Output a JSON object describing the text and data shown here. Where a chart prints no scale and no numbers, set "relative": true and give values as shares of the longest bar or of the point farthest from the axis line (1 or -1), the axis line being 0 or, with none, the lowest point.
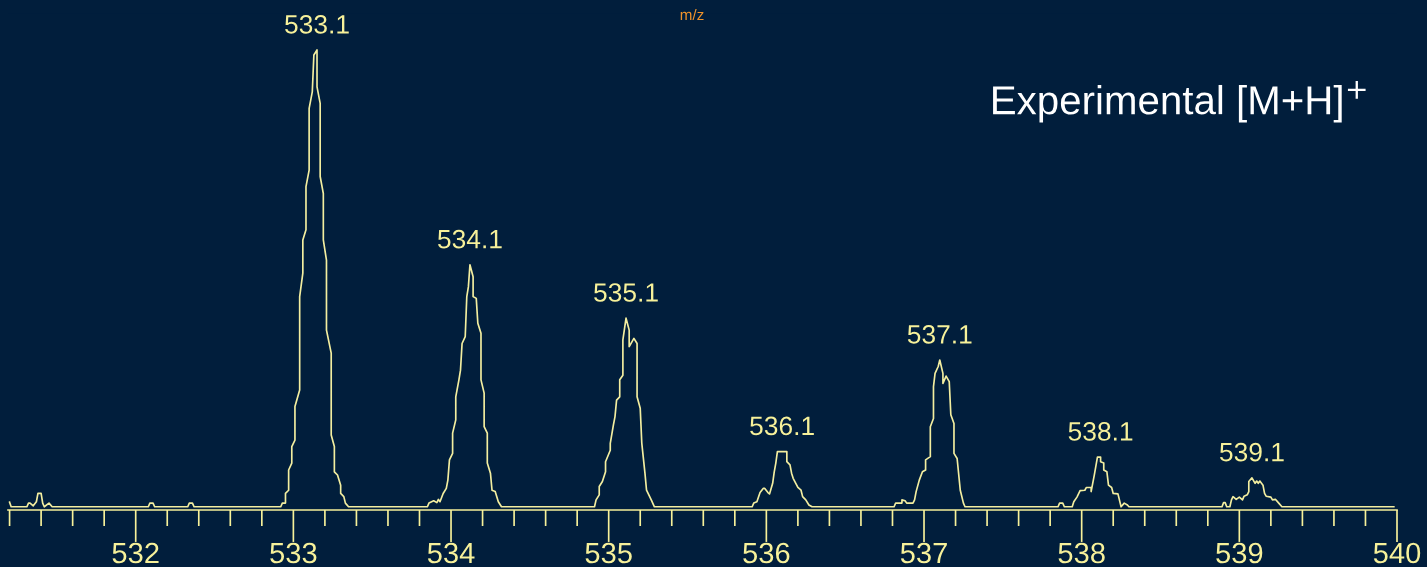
{
  "chart_data": {
    "type": "line",
    "title": "Experimental [M+H]$^{+}$",
    "xlabel": "m/z",
    "relative": true,
    "xlim": [
      531.19,
      540
    ],
    "xticks": [
      {
        "value": 531.2,
        "label": null
      },
      {
        "value": 531.4,
        "label": null
      },
      {
        "value": 531.6,
        "label": null
      },
      {
        "value": 531.8,
        "label": null
      },
      532,
      {
        "value": 532.2,
        "label": null
      },
      {
        "value": 532.4,
        "label": null
      },
      {
        "value": 532.6,
        "label": null
      },
      {
        "value": 532.8,
        "label": null
      },
      533,
      {
        "value": 533.2,
        "label": null
      },
      {
        "value": 533.4,
        "label": null
      },
      {
        "value": 533.6,
        "label": null
      },
      {
        "value": 533.8,
        "label": null
      },
      534,
      {
        "value": 534.2,
        "label": null
      },
      {
        "value": 534.4,
        "label": null
      },
      {
        "value": 534.6,
        "label": null
      },
      {
        "value": 534.8,
        "label": null
      },
      535,
      {
        "value": 535.2,
        "label": null
      },
      {
        "value": 535.4,
        "label": null
      },
      {
        "value": 535.6,
        "label": null
      },
      {
        "value": 535.8,
        "label": null
      },
      536,
      {
        "value": 536.2,
        "label": null
      },
      {
        "value": 536.4,
        "label": null
      },
      {
        "value": 536.6,
        "label": null
      },
      {
        "value": 536.8,
        "label": null
      },
      537,
      {
        "value": 537.2,
        "label": null
      },
      {
        "value": 537.4,
        "label": null
      },
      {
        "value": 537.6,
        "label": null
      },
      {
        "value": 537.8,
        "label": null
      },
      538,
      {
        "value": 538.2,
        "label": null
      },
      {
        "value": 538.4,
        "label": null
      },
      {
        "value": 538.6,
        "label": null
      },
      {
        "value": 538.8,
        "label": null
      },
      539,
      {
        "value": 539.2,
        "label": null
      },
      {
        "value": 539.4,
        "label": null
      },
      {
        "value": 539.6,
        "label": null
      },
      {
        "value": 539.8,
        "label": null
      },
      540
    ],
    "series": [
      {
        "color": "#f3eea0",
        "x": [
          531.2,
          531.21,
          531.31,
          531.32,
          531.33,
          531.35,
          531.37,
          531.38,
          531.4,
          531.41,
          531.42,
          531.45,
          531.47,
          532.08,
          532.09,
          532.11,
          532.12,
          532.33,
          532.34,
          532.36,
          532.37,
          532.92,
          532.93,
          532.95,
          532.95,
          532.97,
          532.97,
          532.99,
          532.99,
          533.01,
          533.01,
          533.04,
          533.04,
          533.06,
          533.06,
          533.08,
          533.08,
          533.1,
          533.1,
          533.12,
          533.13,
          533.15,
          533.15,
          533.17,
          533.17,
          533.19,
          533.19,
          533.21,
          533.21,
          533.24,
          533.24,
          533.26,
          533.26,
          533.28,
          533.3,
          533.3,
          533.32,
          533.33,
          533.35,
          533.85,
          533.86,
          533.89,
          533.91,
          533.92,
          533.93,
          533.95,
          533.97,
          533.98,
          533.99,
          534.01,
          534.01,
          534.03,
          534.03,
          534.05,
          534.06,
          534.07,
          534.09,
          534.1,
          534.11,
          534.12,
          534.14,
          534.14,
          534.16,
          534.17,
          534.19,
          534.19,
          534.21,
          534.21,
          534.23,
          534.23,
          534.25,
          534.26,
          534.28,
          534.3,
          534.32,
          534.91,
          534.92,
          534.94,
          534.94,
          534.96,
          534.98,
          534.98,
          535.01,
          535.01,
          535.03,
          535.04,
          535.05,
          535.07,
          535.07,
          535.09,
          535.09,
          535.11,
          535.13,
          535.13,
          535.16,
          535.18,
          535.18,
          535.2,
          535.21,
          535.23,
          535.24,
          535.27,
          535.29,
          535.91,
          535.92,
          535.94,
          535.96,
          535.98,
          535.99,
          536.01,
          536.02,
          536.04,
          536.05,
          536.06,
          536.07,
          536.13,
          536.13,
          536.15,
          536.16,
          536.17,
          536.2,
          536.22,
          536.23,
          536.25,
          536.27,
          536.29,
          536.81,
          536.82,
          536.86,
          536.86,
          536.88,
          536.89,
          536.93,
          536.94,
          536.95,
          536.97,
          536.99,
          537.01,
          537.01,
          537.04,
          537.04,
          537.06,
          537.06,
          537.07,
          537.09,
          537.1,
          537.12,
          537.12,
          537.14,
          537.16,
          537.17,
          537.19,
          537.19,
          537.21,
          537.23,
          537.25,
          537.26,
          537.85,
          537.86,
          537.88,
          537.89,
          537.94,
          537.95,
          537.97,
          537.99,
          538.02,
          538.03,
          538.06,
          538.06,
          538.08,
          538.1,
          538.12,
          538.12,
          538.14,
          538.14,
          538.16,
          538.17,
          538.19,
          538.2,
          538.23,
          538.25,
          538.27,
          538.29,
          538.3,
          538.89,
          538.9,
          538.91,
          538.92,
          538.94,
          538.95,
          538.96,
          538.98,
          539.0,
          539.02,
          539.03,
          539.05,
          539.06,
          539.06,
          539.08,
          539.1,
          539.11,
          539.12,
          539.13,
          539.15,
          539.16,
          539.17,
          539.2,
          539.21,
          539.23,
          539.25,
          539.27,
          539.98
        ],
        "values": [
          0.017,
          0.007,
          0.007,
          0.015,
          0.015,
          0.009,
          0.018,
          0.036,
          0.036,
          0.015,
          0.007,
          0.015,
          0.007,
          0.007,
          0.015,
          0.015,
          0.007,
          0.007,
          0.015,
          0.015,
          0.007,
          0.007,
          0.015,
          0.015,
          0.036,
          0.043,
          0.087,
          0.102,
          0.138,
          0.152,
          0.225,
          0.261,
          0.464,
          0.515,
          0.587,
          0.609,
          0.703,
          0.739,
          0.873,
          0.909,
          0.989,
          1.0,
          0.92,
          0.884,
          0.725,
          0.688,
          0.587,
          0.543,
          0.391,
          0.341,
          0.163,
          0.138,
          0.083,
          0.076,
          0.054,
          0.036,
          0.029,
          0.015,
          0.007,
          0.007,
          0.015,
          0.02,
          0.016,
          0.023,
          0.018,
          0.036,
          0.047,
          0.065,
          0.109,
          0.123,
          0.167,
          0.196,
          0.246,
          0.283,
          0.304,
          0.362,
          0.377,
          0.464,
          0.485,
          0.533,
          0.507,
          0.464,
          0.46,
          0.406,
          0.384,
          0.283,
          0.254,
          0.181,
          0.167,
          0.102,
          0.08,
          0.043,
          0.04,
          0.018,
          0.007,
          0.007,
          0.022,
          0.033,
          0.051,
          0.062,
          0.083,
          0.105,
          0.13,
          0.145,
          0.185,
          0.203,
          0.239,
          0.246,
          0.283,
          0.293,
          0.37,
          0.417,
          0.391,
          0.355,
          0.373,
          0.362,
          0.246,
          0.221,
          0.145,
          0.08,
          0.043,
          0.022,
          0.007,
          0.007,
          0.015,
          0.018,
          0.038,
          0.047,
          0.047,
          0.038,
          0.035,
          0.058,
          0.083,
          0.102,
          0.127,
          0.127,
          0.105,
          0.098,
          0.08,
          0.069,
          0.049,
          0.043,
          0.029,
          0.022,
          0.011,
          0.007,
          0.007,
          0.015,
          0.015,
          0.022,
          0.02,
          0.015,
          0.015,
          0.022,
          0.04,
          0.065,
          0.083,
          0.087,
          0.109,
          0.116,
          0.181,
          0.199,
          0.268,
          0.297,
          0.312,
          0.326,
          0.297,
          0.275,
          0.291,
          0.279,
          0.207,
          0.188,
          0.123,
          0.112,
          0.043,
          0.015,
          0.007,
          0.007,
          0.015,
          0.015,
          0.007,
          0.007,
          0.018,
          0.028,
          0.042,
          0.043,
          0.049,
          0.049,
          0.04,
          0.076,
          0.115,
          0.115,
          0.105,
          0.102,
          0.087,
          0.083,
          0.054,
          0.049,
          0.036,
          0.035,
          0.007,
          0.015,
          0.011,
          0.007,
          0.007,
          0.016,
          0.016,
          0.007,
          0.007,
          0.022,
          0.029,
          0.023,
          0.028,
          0.022,
          0.03,
          0.033,
          0.04,
          0.062,
          0.07,
          0.058,
          0.063,
          0.058,
          0.063,
          0.054,
          0.036,
          0.03,
          0.028,
          0.022,
          0.023,
          0.015,
          0.007,
          0.007
        ]
      }
    ],
    "annotations": [
      {
        "text": "533.1",
        "x": 533.15,
        "y": 1.0
      },
      {
        "text": "534.1",
        "x": 534.12,
        "y": 0.533
      },
      {
        "text": "535.1",
        "x": 535.11,
        "y": 0.417
      },
      {
        "text": "536.1",
        "x": 536.1,
        "y": 0.127
      },
      {
        "text": "537.1",
        "x": 537.1,
        "y": 0.326
      },
      {
        "text": "538.1",
        "x": 538.12,
        "y": 0.115
      },
      {
        "text": "539.1",
        "x": 539.08,
        "y": 0.07
      }
    ]
  }
}
